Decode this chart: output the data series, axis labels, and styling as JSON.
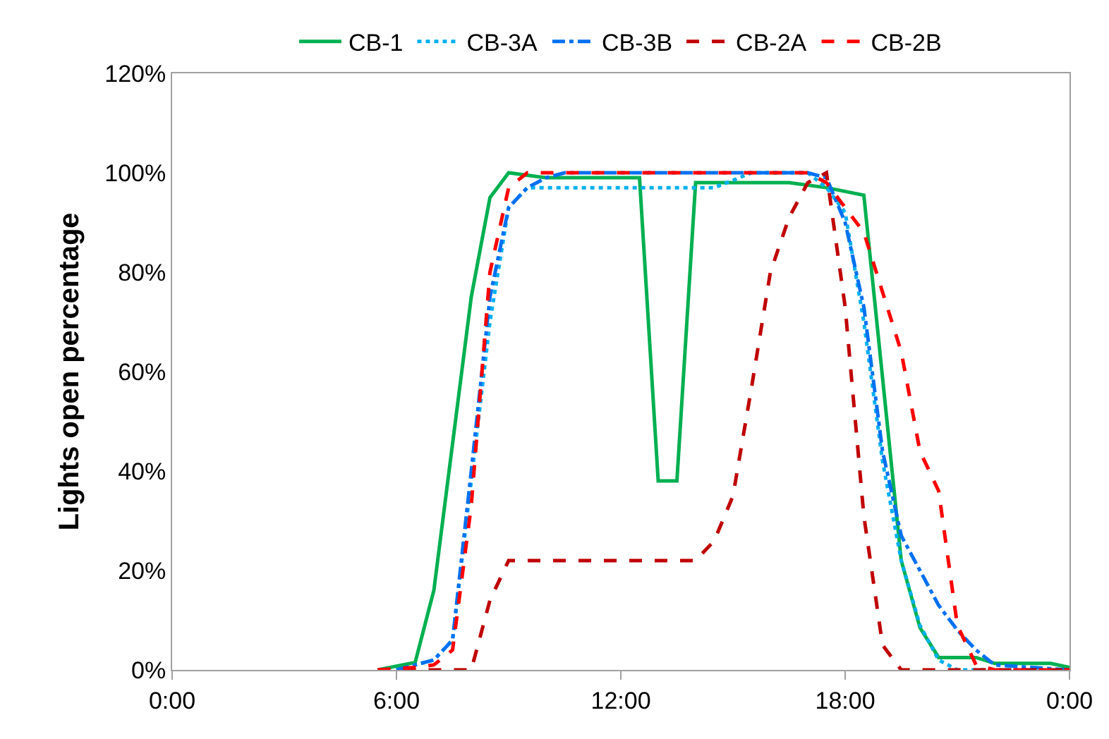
{
  "chart_data": {
    "type": "line",
    "ylabel": "Lights open percentage",
    "xlim": [
      0,
      24
    ],
    "xticks": [
      {
        "value": 0,
        "label": "0:00"
      },
      {
        "value": 6,
        "label": "6:00"
      },
      {
        "value": 12,
        "label": "12:00"
      },
      {
        "value": 18,
        "label": "18:00"
      },
      {
        "value": 24,
        "label": "0:00"
      }
    ],
    "ylim": [
      0,
      120
    ],
    "yticks": [
      {
        "value": 0,
        "label": "0%"
      },
      {
        "value": 20,
        "label": "20%"
      },
      {
        "value": 40,
        "label": "40%"
      },
      {
        "value": 60,
        "label": "60%"
      },
      {
        "value": 80,
        "label": "80%"
      },
      {
        "value": 100,
        "label": "100%"
      },
      {
        "value": 120,
        "label": "120%"
      }
    ],
    "legend": "top",
    "marker": "none",
    "series": [
      {
        "name": "CB-1",
        "color": "#00b050",
        "line_style": "solid",
        "x": [
          5.5,
          6.5,
          7,
          8,
          8.5,
          9,
          10,
          12.5,
          13,
          13.5,
          14,
          16.5,
          17.5,
          18.5,
          19.5,
          20,
          20.5,
          21.5,
          22,
          23.5,
          24
        ],
        "values": [
          0,
          1.5,
          16,
          75,
          95,
          100,
          99,
          99,
          38,
          38,
          98,
          98,
          97,
          95.5,
          22,
          8.5,
          2.5,
          2.5,
          1.3,
          1.3,
          0.5
        ]
      },
      {
        "name": "CB-3A",
        "color": "#00b0f0",
        "line_style": "dotted",
        "x": [
          6,
          6.5,
          7,
          7.5,
          8,
          8.5,
          9,
          9.5,
          14.5,
          15.5,
          17,
          17.5,
          18,
          18.5,
          19,
          19.5,
          20,
          20.5,
          21,
          24
        ],
        "values": [
          0,
          1,
          2,
          6,
          38,
          70,
          93,
          97,
          97,
          100,
          100,
          97,
          92,
          70,
          42,
          22,
          9,
          2,
          0,
          0
        ]
      },
      {
        "name": "CB-3B",
        "color": "#0070f0",
        "line_style": "dashdot",
        "x": [
          6,
          7,
          7.5,
          8,
          8.5,
          9,
          9.5,
          10,
          10.5,
          17,
          17.5,
          18,
          18.5,
          19,
          19.5,
          20,
          20.5,
          21,
          21.5,
          22,
          24
        ],
        "values": [
          0,
          2,
          6,
          40,
          75,
          93,
          97,
          99,
          100,
          100,
          99,
          90,
          73,
          44,
          27,
          20,
          13,
          8,
          4,
          1,
          0
        ]
      },
      {
        "name": "CB-2A",
        "color": "#c00000",
        "line_style": "dashed",
        "x": [
          5.5,
          8,
          8.5,
          9,
          14,
          14.5,
          15,
          15.5,
          16,
          16.5,
          17,
          17.5,
          18,
          18.5,
          19,
          19.5,
          24
        ],
        "values": [
          0,
          0,
          14,
          22,
          22,
          26,
          35,
          57,
          80,
          91,
          98,
          100,
          73,
          31,
          5,
          0,
          0
        ]
      },
      {
        "name": "CB-2B",
        "color": "#ff0000",
        "line_style": "dashed",
        "x": [
          5.5,
          6.5,
          7,
          7.5,
          8,
          8.5,
          9,
          9.5,
          17,
          17.5,
          18,
          18.5,
          19,
          19.5,
          20,
          20.5,
          21,
          21.5,
          22,
          24
        ],
        "values": [
          0,
          0.5,
          1,
          4,
          33,
          80,
          97,
          100,
          100,
          98,
          93,
          88,
          76,
          64,
          44,
          36,
          9,
          1,
          0,
          0
        ]
      }
    ]
  }
}
